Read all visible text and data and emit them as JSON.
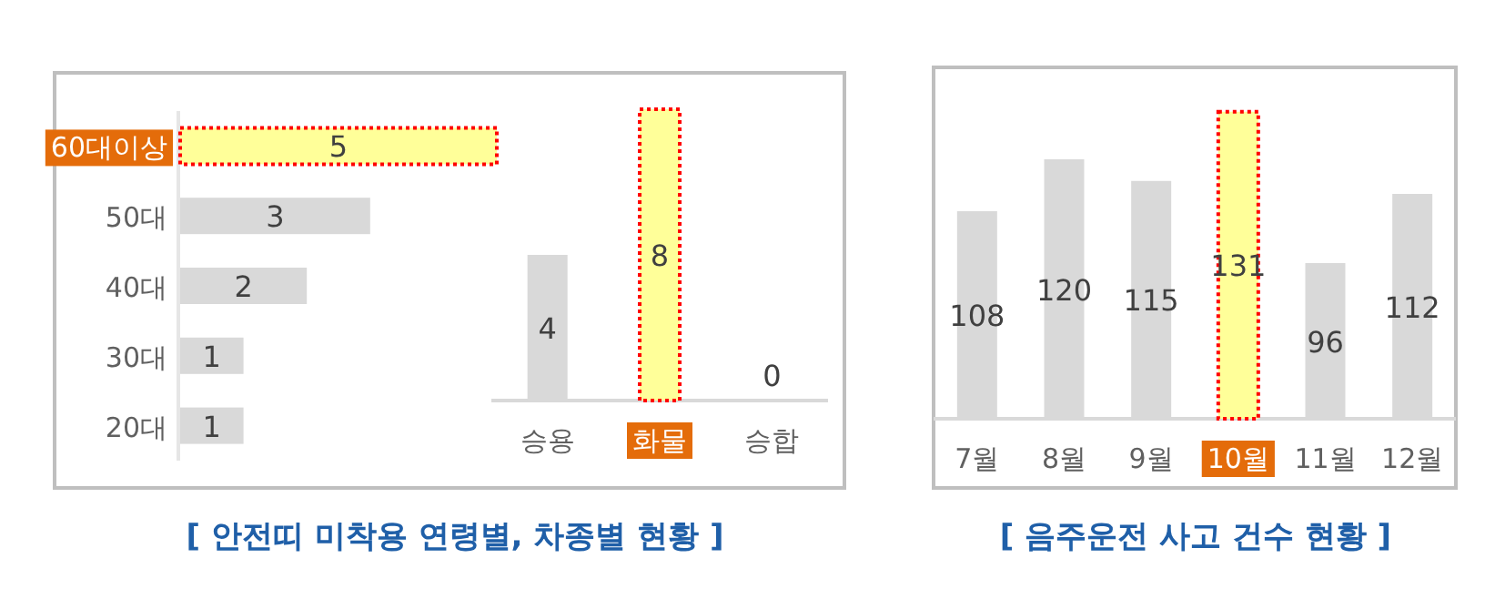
{
  "chart_data": [
    {
      "type": "bar",
      "orientation": "horizontal",
      "categories": [
        "60대이상",
        "50대",
        "40대",
        "30대",
        "20대"
      ],
      "values": [
        5,
        3,
        2,
        1,
        1
      ],
      "colors": [
        "#ffff99",
        "#d9d9d9",
        "#d9d9d9",
        "#d9d9d9",
        "#d9d9d9"
      ],
      "data_labels": true,
      "tick_labels": "y",
      "annotations": [
        "[ 안전띠 미착용 연령별, 차종별 현황 ]"
      ]
    },
    {
      "type": "bar",
      "categories": [
        "승용",
        "화물",
        "승합"
      ],
      "values": [
        4,
        8,
        0
      ],
      "colors": [
        "#d9d9d9",
        "#ffff99",
        "#d9d9d9"
      ],
      "data_labels": true,
      "tick_labels": "x"
    },
    {
      "type": "bar",
      "categories": [
        "7월",
        "8월",
        "9월",
        "10월",
        "11월",
        "12월"
      ],
      "values": [
        108,
        120,
        115,
        131,
        96,
        112
      ],
      "colors": [
        "#d9d9d9",
        "#d9d9d9",
        "#d9d9d9",
        "#ffff99",
        "#d9d9d9",
        "#d9d9d9"
      ],
      "ylim": [
        60,
        140
      ],
      "data_labels": true,
      "tick_labels": "x",
      "annotations": [
        "[ 음주운전 사고 건수 현황 ]"
      ]
    }
  ]
}
